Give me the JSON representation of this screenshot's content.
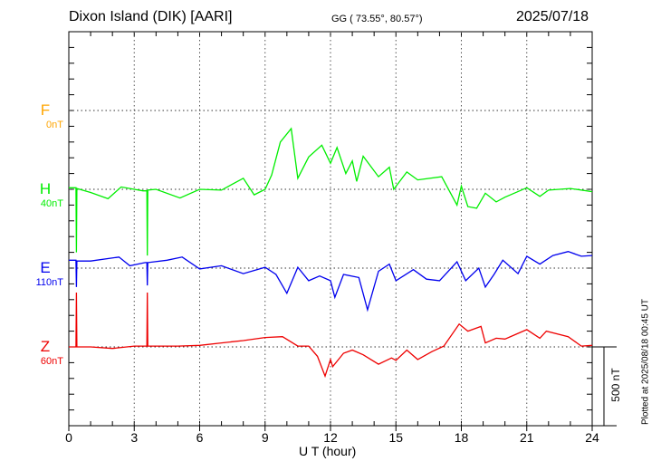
{
  "header": {
    "station": "Dixon Island (DIK)  [AARI]",
    "coords": "GG ( 73.55°,  80.57°)",
    "date": "2025/07/18"
  },
  "footer": {
    "plotted": "Plotted at 2025/08/18 00:45 UT",
    "scale_label": "500 nT"
  },
  "chart_data": {
    "type": "line",
    "title": "Dixon Island (DIK)  [AARI]",
    "xlabel": "U T (hour)",
    "xlim": [
      0,
      24
    ],
    "xticks": [
      "0",
      "3",
      "6",
      "9",
      "12",
      "15",
      "18",
      "21",
      "24"
    ],
    "grid": "dotted verticals every 3 h, dotted baselines per component",
    "scale_nT": 500,
    "colors": {
      "F": "#ffa500",
      "H": "#00ee00",
      "E": "#0000ee",
      "Z": "#ee0000"
    },
    "series": [
      {
        "name": "F",
        "offset_label": "0nT",
        "t": [],
        "values": []
      },
      {
        "name": "H",
        "offset_label": "40nT",
        "t": [
          0,
          0.33,
          0.35,
          0.37,
          1.0,
          1.8,
          2.4,
          3.0,
          3.4,
          3.58,
          3.6,
          3.62,
          4.0,
          5.1,
          6,
          7,
          8.0,
          8.5,
          9,
          9.3,
          9.7,
          10.2,
          10.5,
          11,
          11.6,
          12,
          12.3,
          12.7,
          13.0,
          13.2,
          13.5,
          14.2,
          14.7,
          14.9,
          15.5,
          16,
          17.1,
          17.8,
          18.0,
          18.3,
          18.7,
          19.1,
          19.6,
          20,
          21,
          21.6,
          22,
          23,
          24
        ],
        "values": [
          10,
          10,
          -400,
          5,
          -20,
          -60,
          15,
          0,
          -10,
          -10,
          -420,
          -5,
          0,
          -55,
          0,
          -5,
          70,
          -35,
          0,
          90,
          300,
          385,
          70,
          205,
          280,
          165,
          265,
          100,
          180,
          50,
          210,
          80,
          140,
          0,
          110,
          60,
          80,
          -100,
          20,
          -110,
          -120,
          -25,
          -80,
          -50,
          10,
          -45,
          -5,
          5,
          -15
        ]
      },
      {
        "name": "E",
        "offset_label": "110nT",
        "t": [
          0,
          0.33,
          0.35,
          0.37,
          1,
          2.3,
          2.8,
          3.5,
          3.58,
          3.6,
          3.62,
          4.5,
          5.2,
          6,
          7,
          8,
          9,
          9.5,
          10.0,
          10.5,
          11,
          11.5,
          12,
          12.2,
          12.6,
          13.3,
          13.7,
          14.2,
          14.7,
          15,
          15.8,
          16.4,
          17,
          17.8,
          18.2,
          18.8,
          19.1,
          19.5,
          19.9,
          20.6,
          21,
          21.6,
          22.2,
          22.9,
          23.5,
          24
        ],
        "values": [
          50,
          50,
          -120,
          45,
          45,
          70,
          15,
          35,
          35,
          -110,
          35,
          50,
          70,
          -5,
          15,
          -35,
          5,
          -40,
          -160,
          5,
          -80,
          -50,
          -80,
          -185,
          -40,
          -60,
          -265,
          -20,
          25,
          -80,
          -10,
          -70,
          -80,
          40,
          -80,
          0,
          -120,
          -40,
          50,
          -35,
          75,
          25,
          80,
          105,
          75,
          80
        ]
      },
      {
        "name": "Z",
        "offset_label": "60nT",
        "t": [
          0,
          0.33,
          0.35,
          0.37,
          1,
          2,
          3,
          3.58,
          3.6,
          3.62,
          5,
          6,
          7,
          8,
          9,
          9.8,
          10.5,
          11,
          11.4,
          11.75,
          12,
          12.1,
          12.6,
          13.0,
          13.5,
          14.2,
          14.8,
          15,
          15.5,
          16,
          16.65,
          17.2,
          17.9,
          18.3,
          18.9,
          19.1,
          19.6,
          20.0,
          20.5,
          21.0,
          21.6,
          21.9,
          22.9,
          23.5,
          24
        ],
        "values": [
          0,
          0,
          345,
          0,
          0,
          -10,
          5,
          5,
          345,
          5,
          5,
          10,
          25,
          40,
          60,
          65,
          5,
          5,
          -60,
          -185,
          -80,
          -125,
          -40,
          -20,
          -50,
          -110,
          -70,
          -85,
          -20,
          -80,
          -30,
          5,
          145,
          100,
          130,
          25,
          55,
          50,
          80,
          110,
          55,
          100,
          65,
          5,
          10
        ]
      }
    ]
  }
}
